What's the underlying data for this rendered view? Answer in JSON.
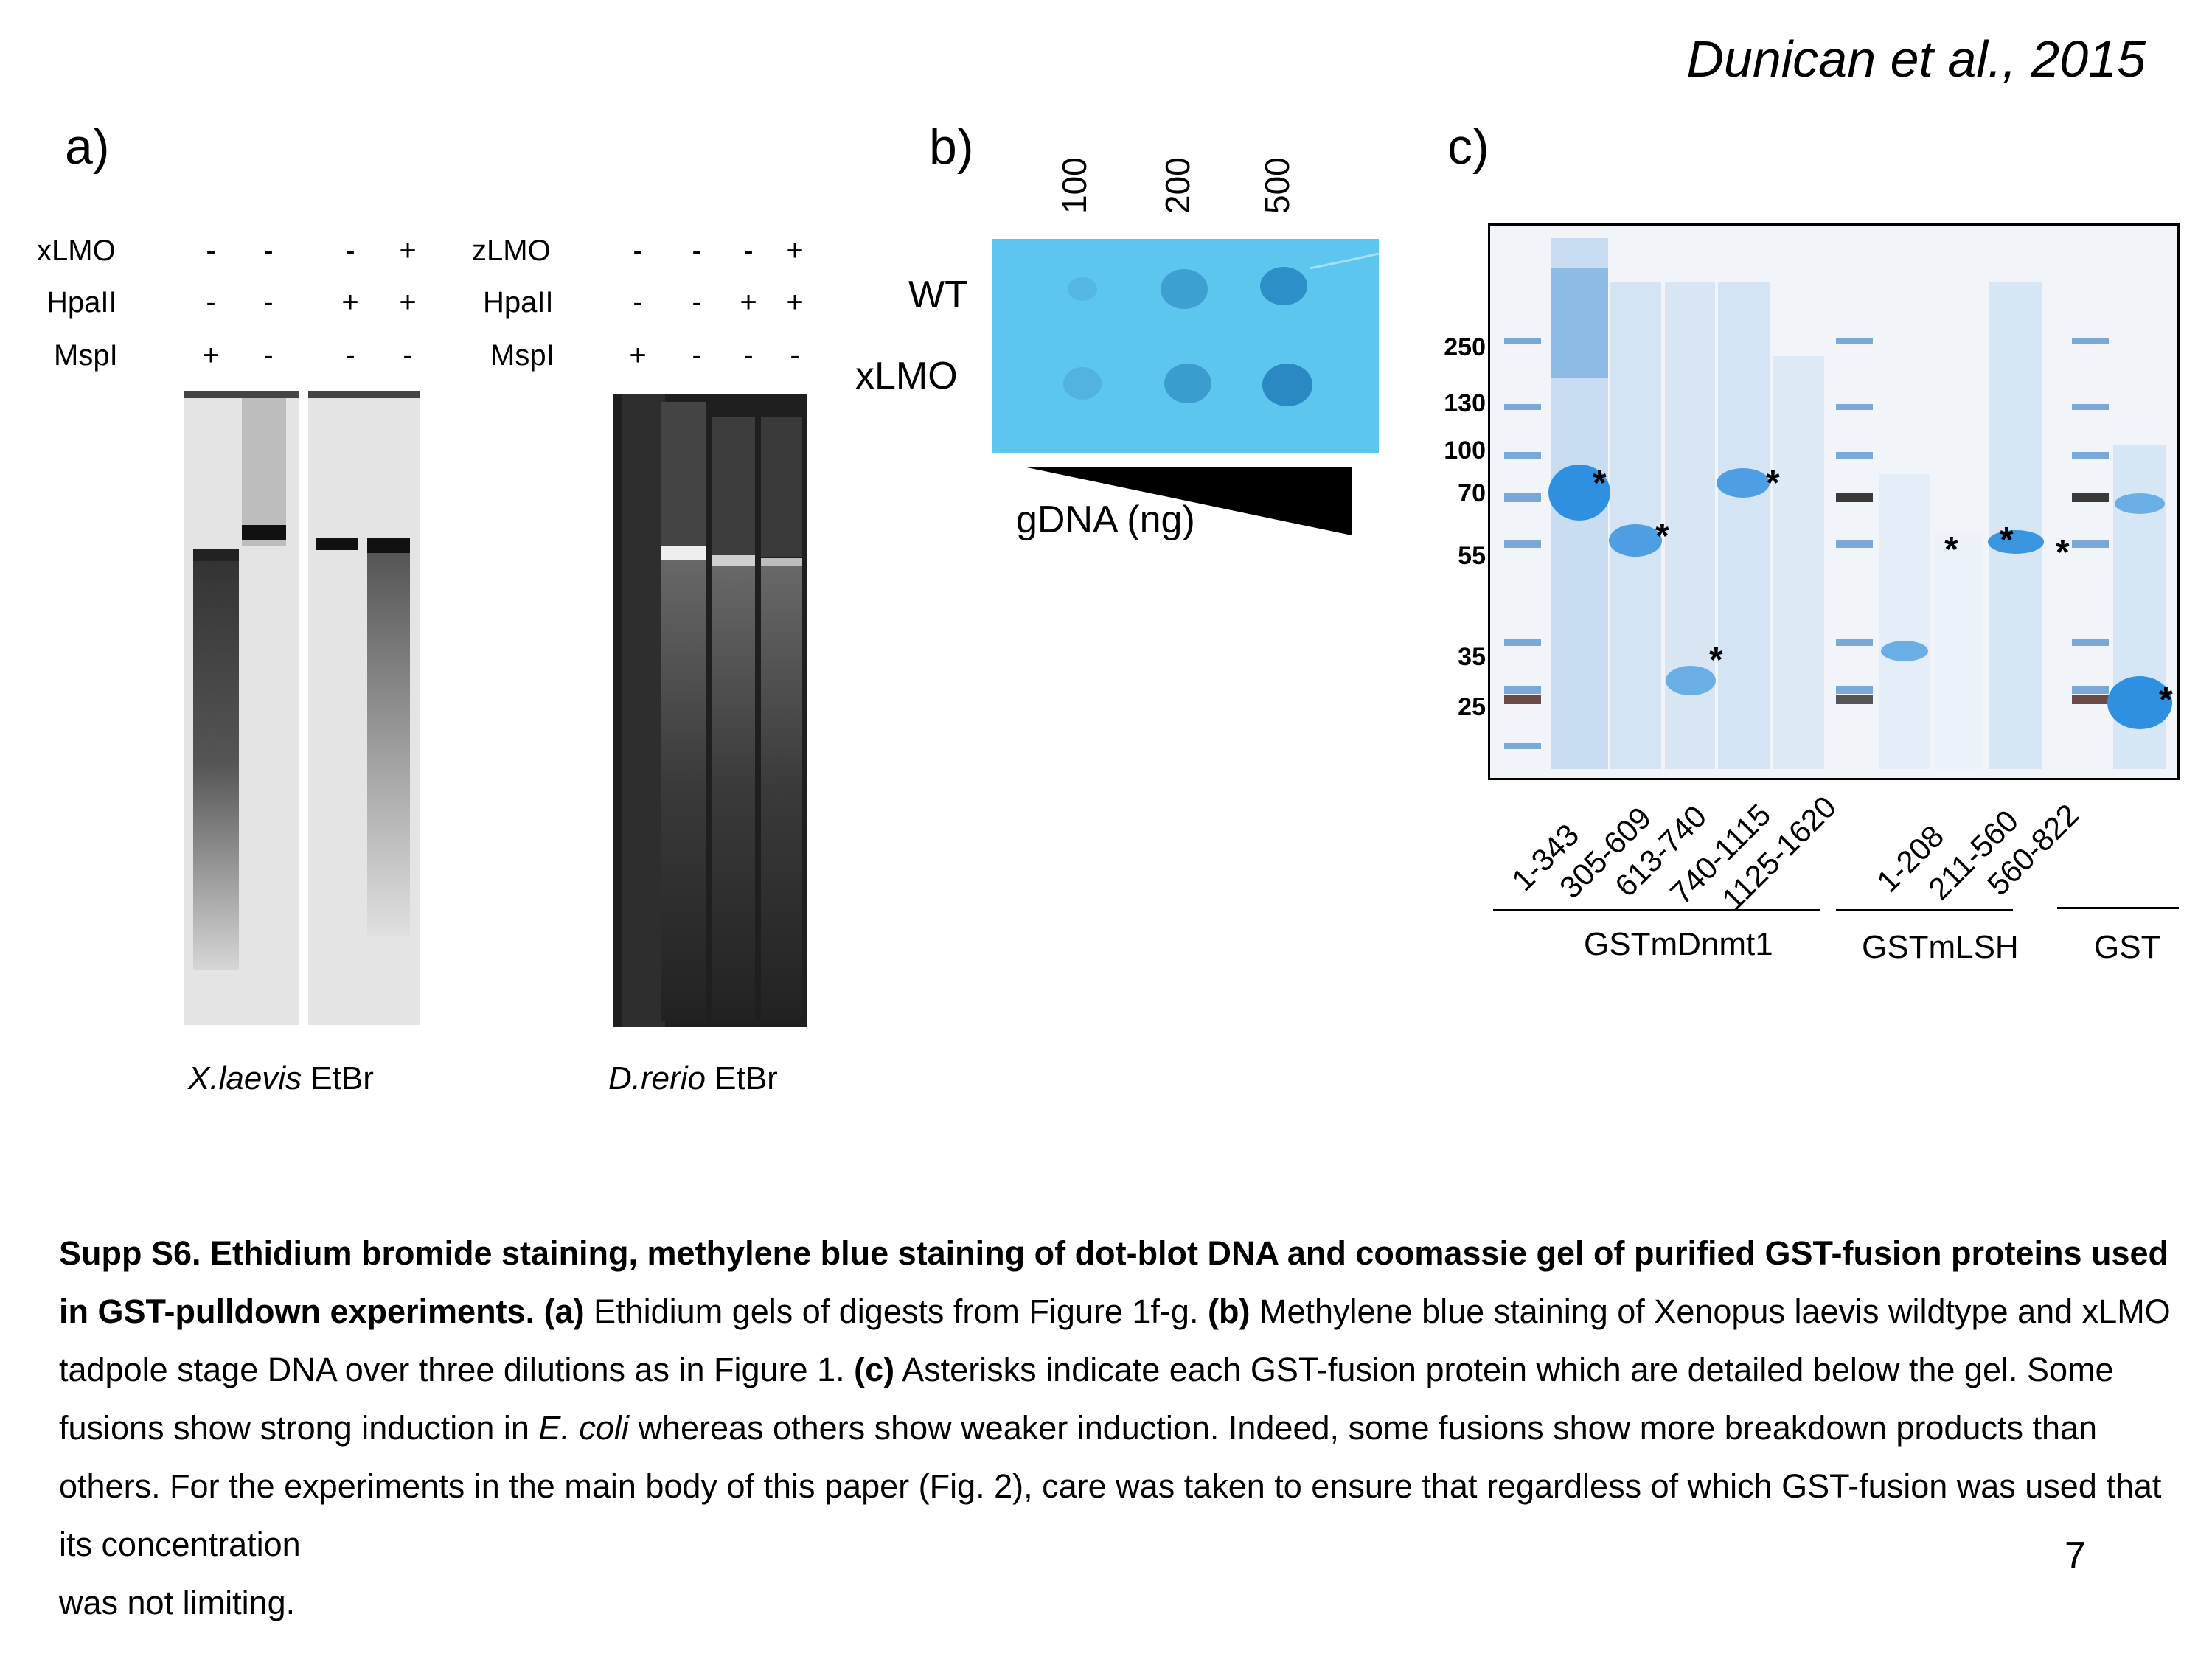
{
  "header": {
    "citation": "Dunican et al., 2015"
  },
  "panel_a": {
    "letter": "a)",
    "gel1": {
      "labels": [
        "xLMO",
        "HpaII",
        "MspI"
      ],
      "rows": [
        [
          "-",
          "-",
          "-",
          "+"
        ],
        [
          "-",
          "-",
          "+",
          "+"
        ],
        [
          "+",
          "-",
          "-",
          "-"
        ]
      ],
      "species": "X.laevis",
      "stain": "EtBr"
    },
    "gel2": {
      "labels": [
        "zLMO",
        "HpaII",
        "MspI"
      ],
      "rows": [
        [
          "-",
          "-",
          "-",
          "+"
        ],
        [
          "-",
          "-",
          "+",
          "+"
        ],
        [
          "+",
          "-",
          "-",
          "-"
        ]
      ],
      "species": "D.rerio",
      "stain": "EtBr"
    }
  },
  "panel_b": {
    "letter": "b)",
    "amounts": [
      "100",
      "200",
      "500"
    ],
    "rows": [
      "WT",
      "xLMO"
    ],
    "axis_label": "gDNA (ng)"
  },
  "panel_c": {
    "letter": "c)",
    "markers": [
      "250",
      "130",
      "100",
      "70",
      "55",
      "35",
      "25"
    ],
    "asterisk": "*",
    "lanes": [
      "1-343",
      "305-609",
      "613-740",
      "740-1115",
      "1125-1620",
      "1-208",
      "211-560",
      "560-822"
    ],
    "groups": [
      "GSTmDnmt1",
      "GSTmLSH",
      "GST"
    ]
  },
  "caption": {
    "title": "Supp S6. Ethidium bromide staining, methylene blue staining of dot-blot DNA and coomassie gel of purified GST-fusion proteins used in GST-pulldown experiments.",
    "a_tag": "(a)",
    "a_text": "Ethidium gels of digests from Figure 1f-g.",
    "b_tag": "(b)",
    "b_text": "Methylene blue staining of Xenopus laevis wildtype and xLMO tadpole stage DNA over three dilutions as in Figure 1.",
    "c_tag": "(c)",
    "c_text1": "Asterisks indicate each GST-fusion protein which are detailed below the gel.  Some fusions show strong induction in",
    "c_italic": "E. coli",
    "c_text2": "whereas others show weaker induction. Indeed, some fusions show more breakdown products than others.  For the experiments in the main body of this paper (Fig. 2), care was taken to ensure that regardless of which GST-fusion was used that its concentration",
    "c_text3": "was not limiting."
  },
  "page_number": "7"
}
